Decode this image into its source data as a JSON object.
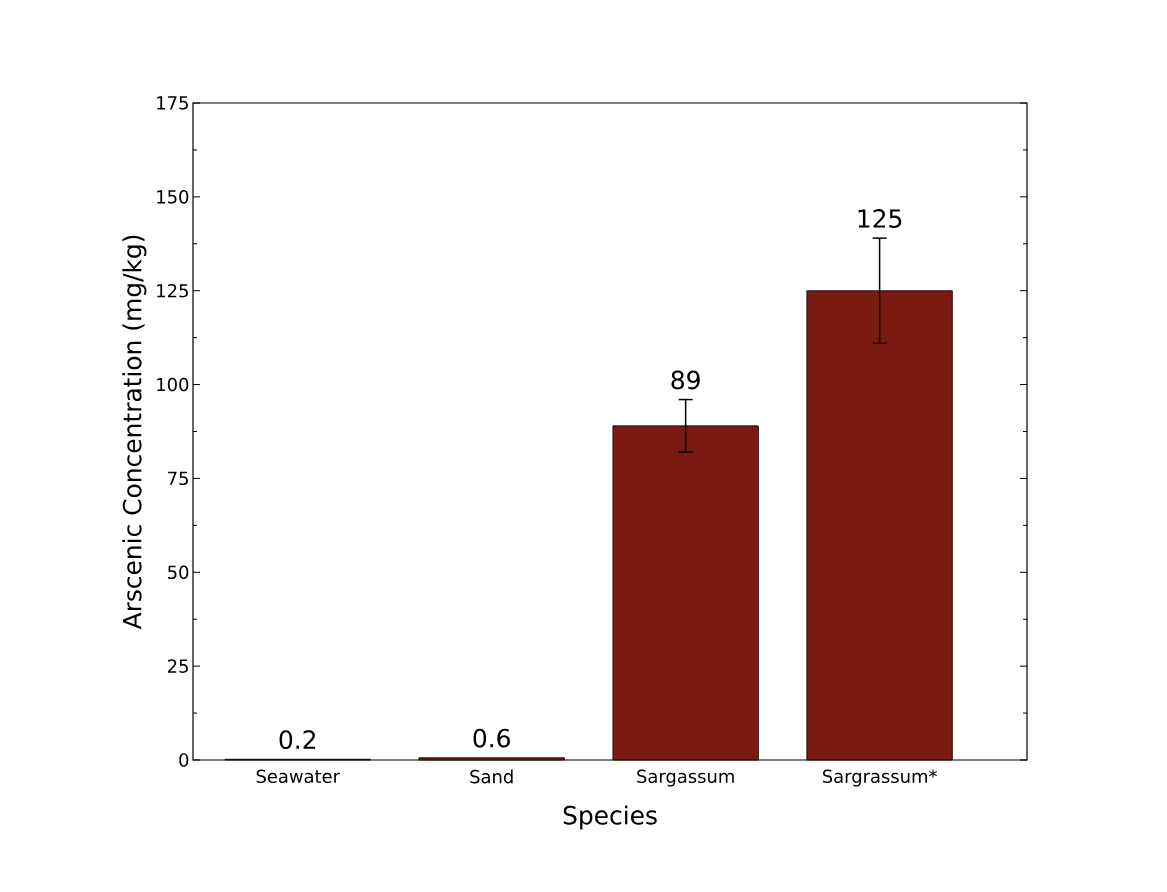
{
  "chart_data": {
    "type": "bar",
    "xlabel": "Species",
    "ylabel": "Arscenic Concentration (mg/kg)",
    "categories": [
      "Seawater",
      "Sand",
      "Sargassum",
      "Sargrassum*"
    ],
    "values": [
      0.2,
      0.6,
      89,
      125
    ],
    "errors": [
      null,
      null,
      7,
      14
    ],
    "color": "#7a1a12",
    "ylim": [
      0,
      175
    ],
    "yticks": [
      0,
      25,
      50,
      75,
      100,
      125,
      150,
      175
    ],
    "data_labels": true
  }
}
